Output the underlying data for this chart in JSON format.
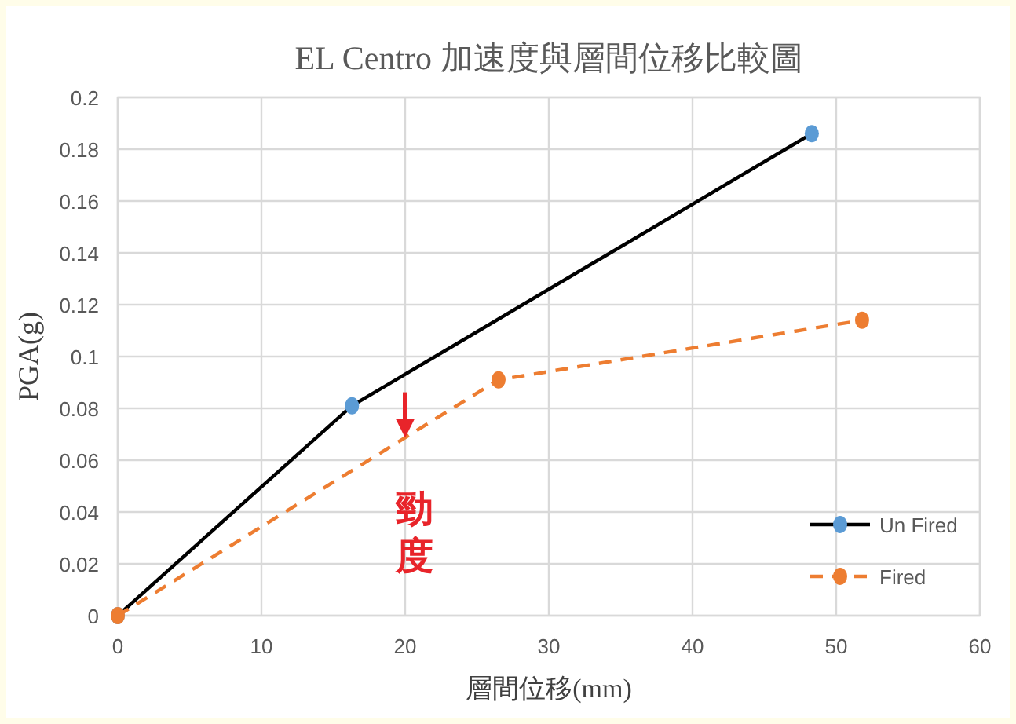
{
  "chart_data": {
    "type": "line",
    "title": "EL Centro 加速度與層間位移比較圖",
    "xlabel": "層間位移(mm)",
    "ylabel": "PGA(g)",
    "series": [
      {
        "name": "Un Fired",
        "type": "line",
        "color": "#000000",
        "marker": "none",
        "line_style": "solid",
        "x": [
          0,
          16.3,
          48.3
        ],
        "values": [
          0,
          0.081,
          0.186
        ]
      },
      {
        "type": "scatter",
        "color": "#5b9bd5",
        "x": [
          0,
          16.3,
          48.3
        ],
        "values": [
          0,
          0.081,
          0.186
        ]
      },
      {
        "name": "Fired",
        "color": "#ed7d31",
        "line_style": "dashed",
        "x": [
          0,
          26.5,
          51.8
        ],
        "values": [
          0,
          0.091,
          0.114
        ]
      }
    ],
    "xlim": [
      0,
      60
    ],
    "xticks": [
      0,
      10,
      20,
      30,
      40,
      50,
      60
    ],
    "ylim": [
      0,
      0.2
    ],
    "yticks": [
      0,
      0.02,
      0.04,
      0.06,
      0.08,
      0.1,
      0.12,
      0.14,
      0.16,
      0.18,
      0.2
    ],
    "grid": true,
    "legend": "bottom right",
    "marker": "circle",
    "annotations": [
      {
        "text": "勁度",
        "x": 20,
        "y": 0.068
      }
    ]
  }
}
